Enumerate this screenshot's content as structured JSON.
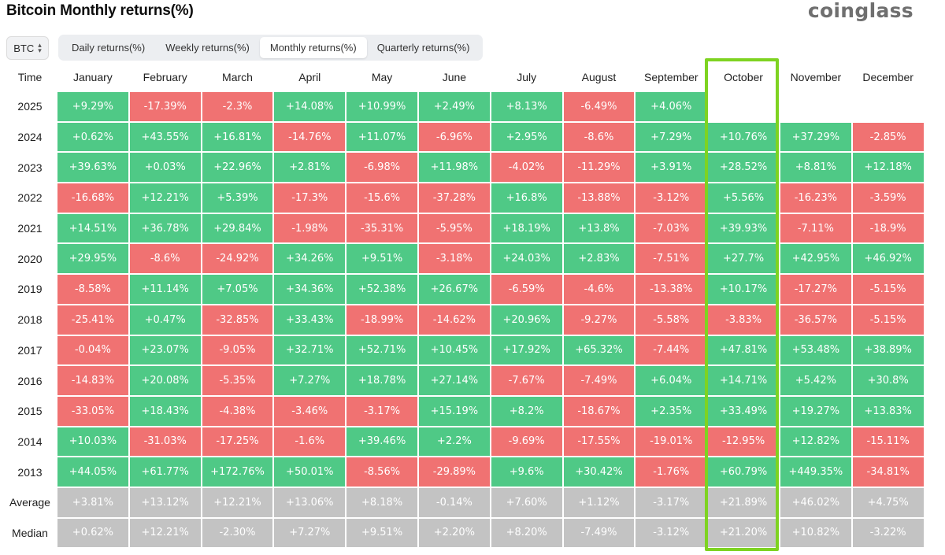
{
  "header": {
    "title": "Bitcoin Monthly returns(%)",
    "brand": "coinglass"
  },
  "coin_selector": {
    "value": "BTC",
    "icon": "updown-icon"
  },
  "tabs": [
    {
      "label": "Daily returns(%)",
      "active": false
    },
    {
      "label": "Weekly returns(%)",
      "active": false
    },
    {
      "label": "Monthly returns(%)",
      "active": true
    },
    {
      "label": "Quarterly returns(%)",
      "active": false
    }
  ],
  "table": {
    "columns": [
      "Time",
      "January",
      "February",
      "March",
      "April",
      "May",
      "June",
      "July",
      "August",
      "September",
      "October",
      "November",
      "December"
    ],
    "rows": [
      {
        "label": "2025",
        "values": [
          "+9.29%",
          "-17.39%",
          "-2.3%",
          "+14.08%",
          "+10.99%",
          "+2.49%",
          "+8.13%",
          "-6.49%",
          "+4.06%",
          "",
          "",
          ""
        ]
      },
      {
        "label": "2024",
        "values": [
          "+0.62%",
          "+43.55%",
          "+16.81%",
          "-14.76%",
          "+11.07%",
          "-6.96%",
          "+2.95%",
          "-8.6%",
          "+7.29%",
          "+10.76%",
          "+37.29%",
          "-2.85%"
        ]
      },
      {
        "label": "2023",
        "values": [
          "+39.63%",
          "+0.03%",
          "+22.96%",
          "+2.81%",
          "-6.98%",
          "+11.98%",
          "-4.02%",
          "-11.29%",
          "+3.91%",
          "+28.52%",
          "+8.81%",
          "+12.18%"
        ]
      },
      {
        "label": "2022",
        "values": [
          "-16.68%",
          "+12.21%",
          "+5.39%",
          "-17.3%",
          "-15.6%",
          "-37.28%",
          "+16.8%",
          "-13.88%",
          "-3.12%",
          "+5.56%",
          "-16.23%",
          "-3.59%"
        ]
      },
      {
        "label": "2021",
        "values": [
          "+14.51%",
          "+36.78%",
          "+29.84%",
          "-1.98%",
          "-35.31%",
          "-5.95%",
          "+18.19%",
          "+13.8%",
          "-7.03%",
          "+39.93%",
          "-7.11%",
          "-18.9%"
        ]
      },
      {
        "label": "2020",
        "values": [
          "+29.95%",
          "-8.6%",
          "-24.92%",
          "+34.26%",
          "+9.51%",
          "-3.18%",
          "+24.03%",
          "+2.83%",
          "-7.51%",
          "+27.7%",
          "+42.95%",
          "+46.92%"
        ]
      },
      {
        "label": "2019",
        "values": [
          "-8.58%",
          "+11.14%",
          "+7.05%",
          "+34.36%",
          "+52.38%",
          "+26.67%",
          "-6.59%",
          "-4.6%",
          "-13.38%",
          "+10.17%",
          "-17.27%",
          "-5.15%"
        ]
      },
      {
        "label": "2018",
        "values": [
          "-25.41%",
          "+0.47%",
          "-32.85%",
          "+33.43%",
          "-18.99%",
          "-14.62%",
          "+20.96%",
          "-9.27%",
          "-5.58%",
          "-3.83%",
          "-36.57%",
          "-5.15%"
        ]
      },
      {
        "label": "2017",
        "values": [
          "-0.04%",
          "+23.07%",
          "-9.05%",
          "+32.71%",
          "+52.71%",
          "+10.45%",
          "+17.92%",
          "+65.32%",
          "-7.44%",
          "+47.81%",
          "+53.48%",
          "+38.89%"
        ]
      },
      {
        "label": "2016",
        "values": [
          "-14.83%",
          "+20.08%",
          "-5.35%",
          "+7.27%",
          "+18.78%",
          "+27.14%",
          "-7.67%",
          "-7.49%",
          "+6.04%",
          "+14.71%",
          "+5.42%",
          "+30.8%"
        ]
      },
      {
        "label": "2015",
        "values": [
          "-33.05%",
          "+18.43%",
          "-4.38%",
          "-3.46%",
          "-3.17%",
          "+15.19%",
          "+8.2%",
          "-18.67%",
          "+2.35%",
          "+33.49%",
          "+19.27%",
          "+13.83%"
        ]
      },
      {
        "label": "2014",
        "values": [
          "+10.03%",
          "-31.03%",
          "-17.25%",
          "-1.6%",
          "+39.46%",
          "+2.2%",
          "-9.69%",
          "-17.55%",
          "-19.01%",
          "-12.95%",
          "+12.82%",
          "-15.11%"
        ]
      },
      {
        "label": "2013",
        "values": [
          "+44.05%",
          "+61.77%",
          "+172.76%",
          "+50.01%",
          "-8.56%",
          "-29.89%",
          "+9.6%",
          "+30.42%",
          "-1.76%",
          "+60.79%",
          "+449.35%",
          "-34.81%"
        ]
      }
    ],
    "stat_rows": [
      {
        "label": "Average",
        "values": [
          "+3.81%",
          "+13.12%",
          "+12.21%",
          "+13.06%",
          "+8.18%",
          "-0.14%",
          "+7.60%",
          "+1.12%",
          "-3.17%",
          "+21.89%",
          "+46.02%",
          "+4.75%"
        ]
      },
      {
        "label": "Median",
        "values": [
          "+0.62%",
          "+12.21%",
          "-2.30%",
          "+7.27%",
          "+9.51%",
          "+2.20%",
          "+8.20%",
          "-7.49%",
          "-3.12%",
          "+21.20%",
          "+10.82%",
          "-3.22%"
        ]
      }
    ]
  },
  "highlight": {
    "column": "October",
    "color": "#7ed321"
  },
  "colors": {
    "positive": "#4fc986",
    "negative": "#f07272",
    "stat": "#c3c3c3"
  }
}
